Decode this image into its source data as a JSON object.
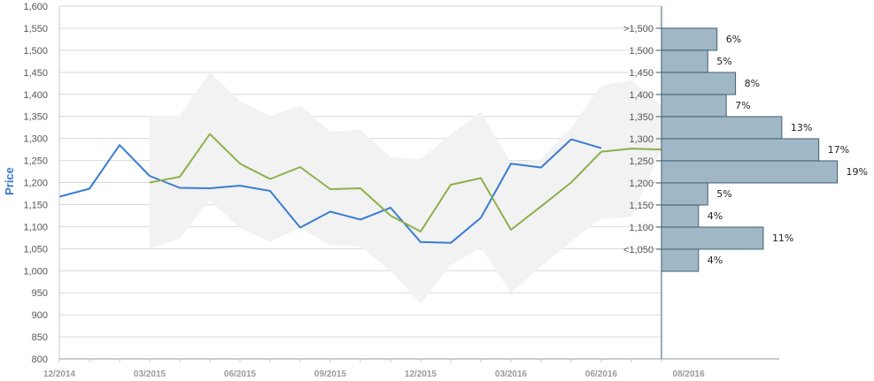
{
  "chart_data": {
    "type": "line",
    "ylabel": "Price",
    "ylim": [
      800,
      1600
    ],
    "y_ticks": [
      "1,600",
      "1,550",
      "1,500",
      "1,450",
      "1,400",
      "1,350",
      "1,300",
      "1,250",
      "1,200",
      "1,150",
      "1,100",
      "1,050",
      "1,000",
      "950",
      "900",
      "850",
      "800"
    ],
    "x_ticks": [
      "12/2014",
      "03/2015",
      "06/2015",
      "09/2015",
      "12/2015",
      "03/2016",
      "06/2016",
      "08/2016"
    ],
    "grid": true,
    "colors": {
      "series_blue": "#3a7dd0",
      "series_green": "#8db04c",
      "band": "#f2f2f2",
      "hist_fill": "#a0b8c6",
      "hist_stroke": "#3f5f72"
    },
    "x": [
      "12/2014",
      "01/2015",
      "02/2015",
      "03/2015",
      "04/2015",
      "05/2015",
      "06/2015",
      "07/2015",
      "08/2015",
      "09/2015",
      "10/2015",
      "11/2015",
      "12/2015",
      "01/2016",
      "02/2016",
      "03/2016",
      "04/2016",
      "05/2016",
      "06/2016",
      "07/2016",
      "08/2016"
    ],
    "series": [
      {
        "color": "#3a7dd0",
        "values": [
          1168,
          1186,
          1285,
          1215,
          1188,
          1187,
          1193,
          1181,
          1098,
          1134,
          1116,
          1143,
          1065,
          1063,
          1120,
          1243,
          1234,
          1298,
          1278,
          null,
          null
        ]
      },
      {
        "color": "#8db04c",
        "values": [
          null,
          null,
          null,
          1200,
          1213,
          1310,
          1243,
          1208,
          1235,
          1185,
          1187,
          1125,
          1089,
          1195,
          1210,
          1093,
          1146,
          1200,
          1270,
          1277,
          1275
        ]
      }
    ],
    "band": {
      "x_start": "03/2015",
      "upper": [
        1352,
        1352,
        1450,
        1385,
        1350,
        1375,
        1315,
        1320,
        1257,
        1253,
        1310,
        1360,
        1245,
        1253,
        1325,
        1420,
        1432,
        1375
      ],
      "lower": [
        1050,
        1073,
        1160,
        1097,
        1066,
        1097,
        1058,
        1055,
        1000,
        925,
        1012,
        1053,
        950,
        1010,
        1066,
        1118,
        1122,
        1275
      ]
    },
    "histogram": {
      "categories": [
        ">1,500",
        "1,500",
        "1,450",
        "1,400",
        "1,350",
        "1,300",
        "1,250",
        "1,200",
        "1,150",
        "1,100",
        "<1,050"
      ],
      "values": [
        6,
        5,
        8,
        7,
        13,
        17,
        19,
        5,
        4,
        11,
        4
      ],
      "labels": [
        "6%",
        "5%",
        "8%",
        "7%",
        "13%",
        "17%",
        "19%",
        "5%",
        "4%",
        "11%",
        "4%"
      ]
    }
  }
}
